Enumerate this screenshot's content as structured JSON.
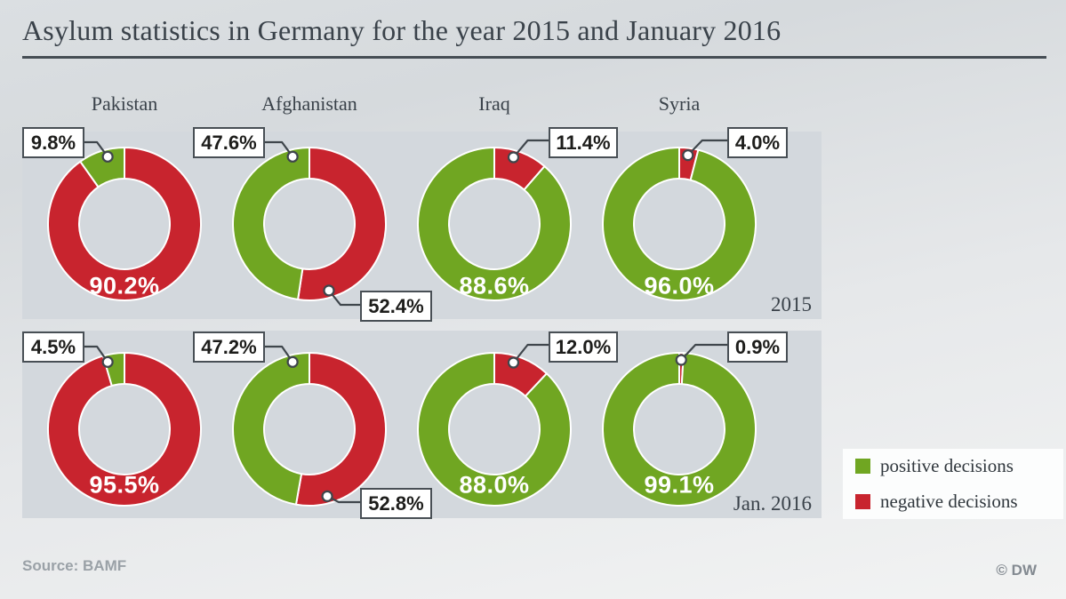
{
  "title": "Asylum statistics in Germany for the year 2015 and January 2016",
  "source": "Source: BAMF",
  "copyright": "© DW",
  "colors": {
    "positive": "#70a622",
    "negative": "#c8242e",
    "panel": "#d3d8dd",
    "line": "#3f464c",
    "heading": "#3a424a",
    "callout_text": "#1d1d1b",
    "source_text": "#9aa1a7",
    "copyright_text": "#838a91"
  },
  "legend": {
    "items": [
      {
        "label": "positive decisions",
        "color": "#70a622",
        "series": "positive"
      },
      {
        "label": "negative decisions",
        "color": "#c8242e",
        "series": "negative"
      }
    ]
  },
  "chart_data": {
    "type": "pie",
    "subtype": "donut",
    "unit": "percent",
    "legend_position": "bottom-right",
    "rows": [
      {
        "period": "2015",
        "charts": [
          {
            "country": "Pakistan",
            "positive": 9.8,
            "negative": 90.2,
            "callouts": [
              {
                "side": "left",
                "series": "positive",
                "value": "9.8%"
              }
            ],
            "inner_label": {
              "series": "negative",
              "value": "90.2%"
            }
          },
          {
            "country": "Afghanistan",
            "positive": 47.6,
            "negative": 52.4,
            "callouts": [
              {
                "side": "left",
                "series": "positive",
                "value": "47.6%"
              },
              {
                "side": "bottom",
                "series": "negative",
                "value": "52.4%"
              }
            ],
            "inner_label": null
          },
          {
            "country": "Iraq",
            "positive": 88.6,
            "negative": 11.4,
            "callouts": [
              {
                "side": "right",
                "series": "negative",
                "value": "11.4%"
              }
            ],
            "inner_label": {
              "series": "positive",
              "value": "88.6%"
            }
          },
          {
            "country": "Syria",
            "positive": 96.0,
            "negative": 4.0,
            "callouts": [
              {
                "side": "right",
                "series": "negative",
                "value": "4.0%"
              }
            ],
            "inner_label": {
              "series": "positive",
              "value": "96.0%"
            }
          }
        ]
      },
      {
        "period": "Jan. 2016",
        "charts": [
          {
            "country": "Pakistan",
            "positive": 4.5,
            "negative": 95.5,
            "callouts": [
              {
                "side": "left",
                "series": "positive",
                "value": "4.5%"
              }
            ],
            "inner_label": {
              "series": "negative",
              "value": "95.5%"
            }
          },
          {
            "country": "Afghanistan",
            "positive": 47.2,
            "negative": 52.8,
            "callouts": [
              {
                "side": "left",
                "series": "positive",
                "value": "47.2%"
              },
              {
                "side": "bottom",
                "series": "negative",
                "value": "52.8%"
              }
            ],
            "inner_label": null
          },
          {
            "country": "Iraq",
            "positive": 88.0,
            "negative": 12.0,
            "callouts": [
              {
                "side": "right",
                "series": "negative",
                "value": "12.0%"
              }
            ],
            "inner_label": {
              "series": "positive",
              "value": "88.0%"
            }
          },
          {
            "country": "Syria",
            "positive": 99.1,
            "negative": 0.9,
            "callouts": [
              {
                "side": "right",
                "series": "negative",
                "value": "0.9%"
              }
            ],
            "inner_label": {
              "series": "positive",
              "value": "99.1%"
            }
          }
        ]
      }
    ]
  }
}
